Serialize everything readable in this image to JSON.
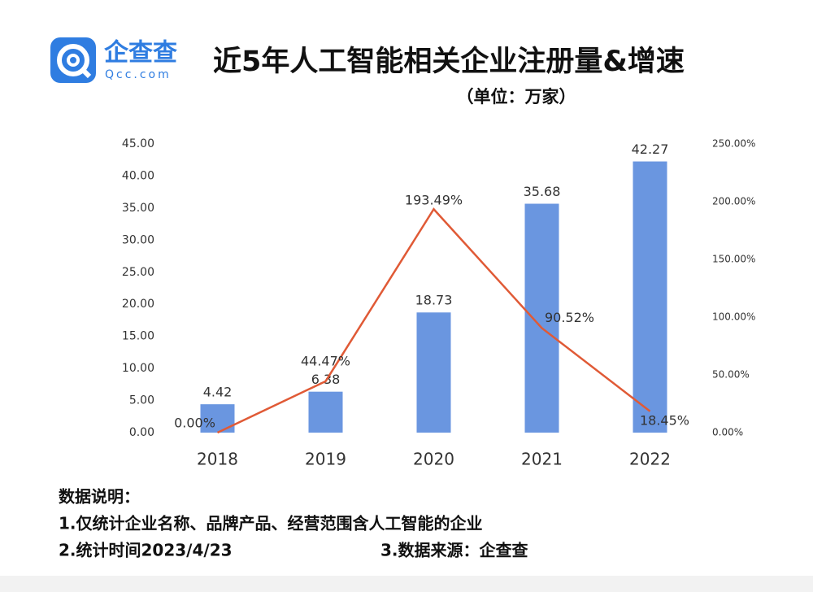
{
  "header": {
    "logo": "企查查",
    "logo_sub": "Qcc.com"
  },
  "chart_data": {
    "type": "combo",
    "title": "近5年人工智能相关企业注册量&增速",
    "subtitle": "（单位：万家）",
    "categories": [
      "2018",
      "2019",
      "2020",
      "2021",
      "2022"
    ],
    "series": [
      {
        "type": "bar",
        "color": "#6a96e0",
        "values": [
          4.42,
          6.38,
          18.73,
          35.68,
          42.27
        ]
      },
      {
        "type": "line",
        "axis": "y2",
        "color": "#e05a36",
        "values": [
          0,
          44.47,
          193.49,
          90.52,
          18.45
        ],
        "value_labels": [
          "0.00%",
          "44.47%",
          "193.49%",
          "90.52%",
          "18.45%"
        ]
      }
    ],
    "ylim": [
      0,
      45
    ],
    "yticks": [
      {
        "value": 0,
        "label": "0.00"
      },
      {
        "value": 5,
        "label": "5.00"
      },
      {
        "value": 10,
        "label": "10.00"
      },
      {
        "value": 15,
        "label": "15.00"
      },
      {
        "value": 20,
        "label": "20.00"
      },
      {
        "value": 25,
        "label": "25.00"
      },
      {
        "value": 30,
        "label": "30.00"
      },
      {
        "value": 35,
        "label": "35.00"
      },
      {
        "value": 40,
        "label": "40.00"
      },
      {
        "value": 45,
        "label": "45.00"
      }
    ],
    "y2lim": [
      0,
      250
    ],
    "y2ticks": [
      {
        "value": 0,
        "label": "0.00%"
      },
      {
        "value": 50,
        "label": "50.00%"
      },
      {
        "value": 100,
        "label": "100.00%"
      },
      {
        "value": 150,
        "label": "150.00%"
      },
      {
        "value": 200,
        "label": "200.00%"
      },
      {
        "value": 250,
        "label": "250.00%"
      }
    ]
  },
  "notes": [
    "数据说明：",
    "1.仅统计企业名称、品牌产品、经营范围含人工智能的企业",
    "2.统计时间2023/4/23",
    "3.数据来源：企查查"
  ]
}
